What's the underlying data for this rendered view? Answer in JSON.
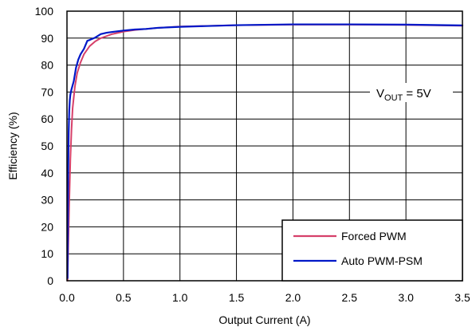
{
  "chart_data": {
    "type": "line",
    "xlabel": "Output Current (A)",
    "ylabel": "Efficiency (%)",
    "xlim": [
      0,
      3.5
    ],
    "ylim": [
      0,
      100
    ],
    "x_ticks": [
      0.0,
      0.5,
      1.0,
      1.5,
      2.0,
      2.5,
      3.0,
      3.5
    ],
    "x_tick_labels": [
      "0.0",
      "0.5",
      "1.0",
      "1.5",
      "2.0",
      "2.5",
      "3.0",
      "3.5"
    ],
    "y_ticks": [
      0,
      10,
      20,
      30,
      40,
      50,
      60,
      70,
      80,
      90,
      100
    ],
    "y_tick_labels": [
      "0",
      "10",
      "20",
      "30",
      "40",
      "50",
      "60",
      "70",
      "80",
      "90",
      "100"
    ],
    "grid": true,
    "legend_position": "bottom-right",
    "annotation": {
      "main": "V",
      "sub": "OUT",
      "tail": " = 5V"
    },
    "series": [
      {
        "name": "Forced PWM",
        "color": "#d6406a",
        "x": [
          0.005,
          0.01,
          0.02,
          0.03,
          0.04,
          0.05,
          0.07,
          0.09,
          0.12,
          0.15,
          0.2,
          0.25,
          0.3,
          0.4,
          0.5,
          0.6,
          0.7,
          0.8,
          1.0,
          1.5,
          2.0,
          2.5,
          3.0,
          3.5
        ],
        "values": [
          0,
          10,
          29,
          45,
          56,
          64,
          72,
          77,
          81,
          84,
          87,
          88.8,
          90,
          91.5,
          92.4,
          93,
          93.4,
          93.8,
          94.3,
          94.8,
          95,
          95,
          94.9,
          94.6
        ]
      },
      {
        "name": "Auto PWM-PSM",
        "color": "#0018c8",
        "x": [
          0.005,
          0.01,
          0.015,
          0.02,
          0.025,
          0.03,
          0.04,
          0.05,
          0.06,
          0.08,
          0.1,
          0.12,
          0.15,
          0.18,
          0.2,
          0.25,
          0.3,
          0.35,
          0.4,
          0.5,
          0.6,
          0.7,
          0.8,
          1.0,
          1.5,
          2.0,
          2.5,
          3.0,
          3.5
        ],
        "values": [
          1,
          37,
          55,
          63,
          67,
          69,
          71,
          72.5,
          74,
          79,
          82,
          84,
          86,
          89,
          89.3,
          90.2,
          91.5,
          92,
          92.3,
          92.8,
          93.2,
          93.4,
          93.8,
          94.2,
          94.8,
          95.1,
          95.1,
          95,
          94.7
        ]
      }
    ]
  }
}
